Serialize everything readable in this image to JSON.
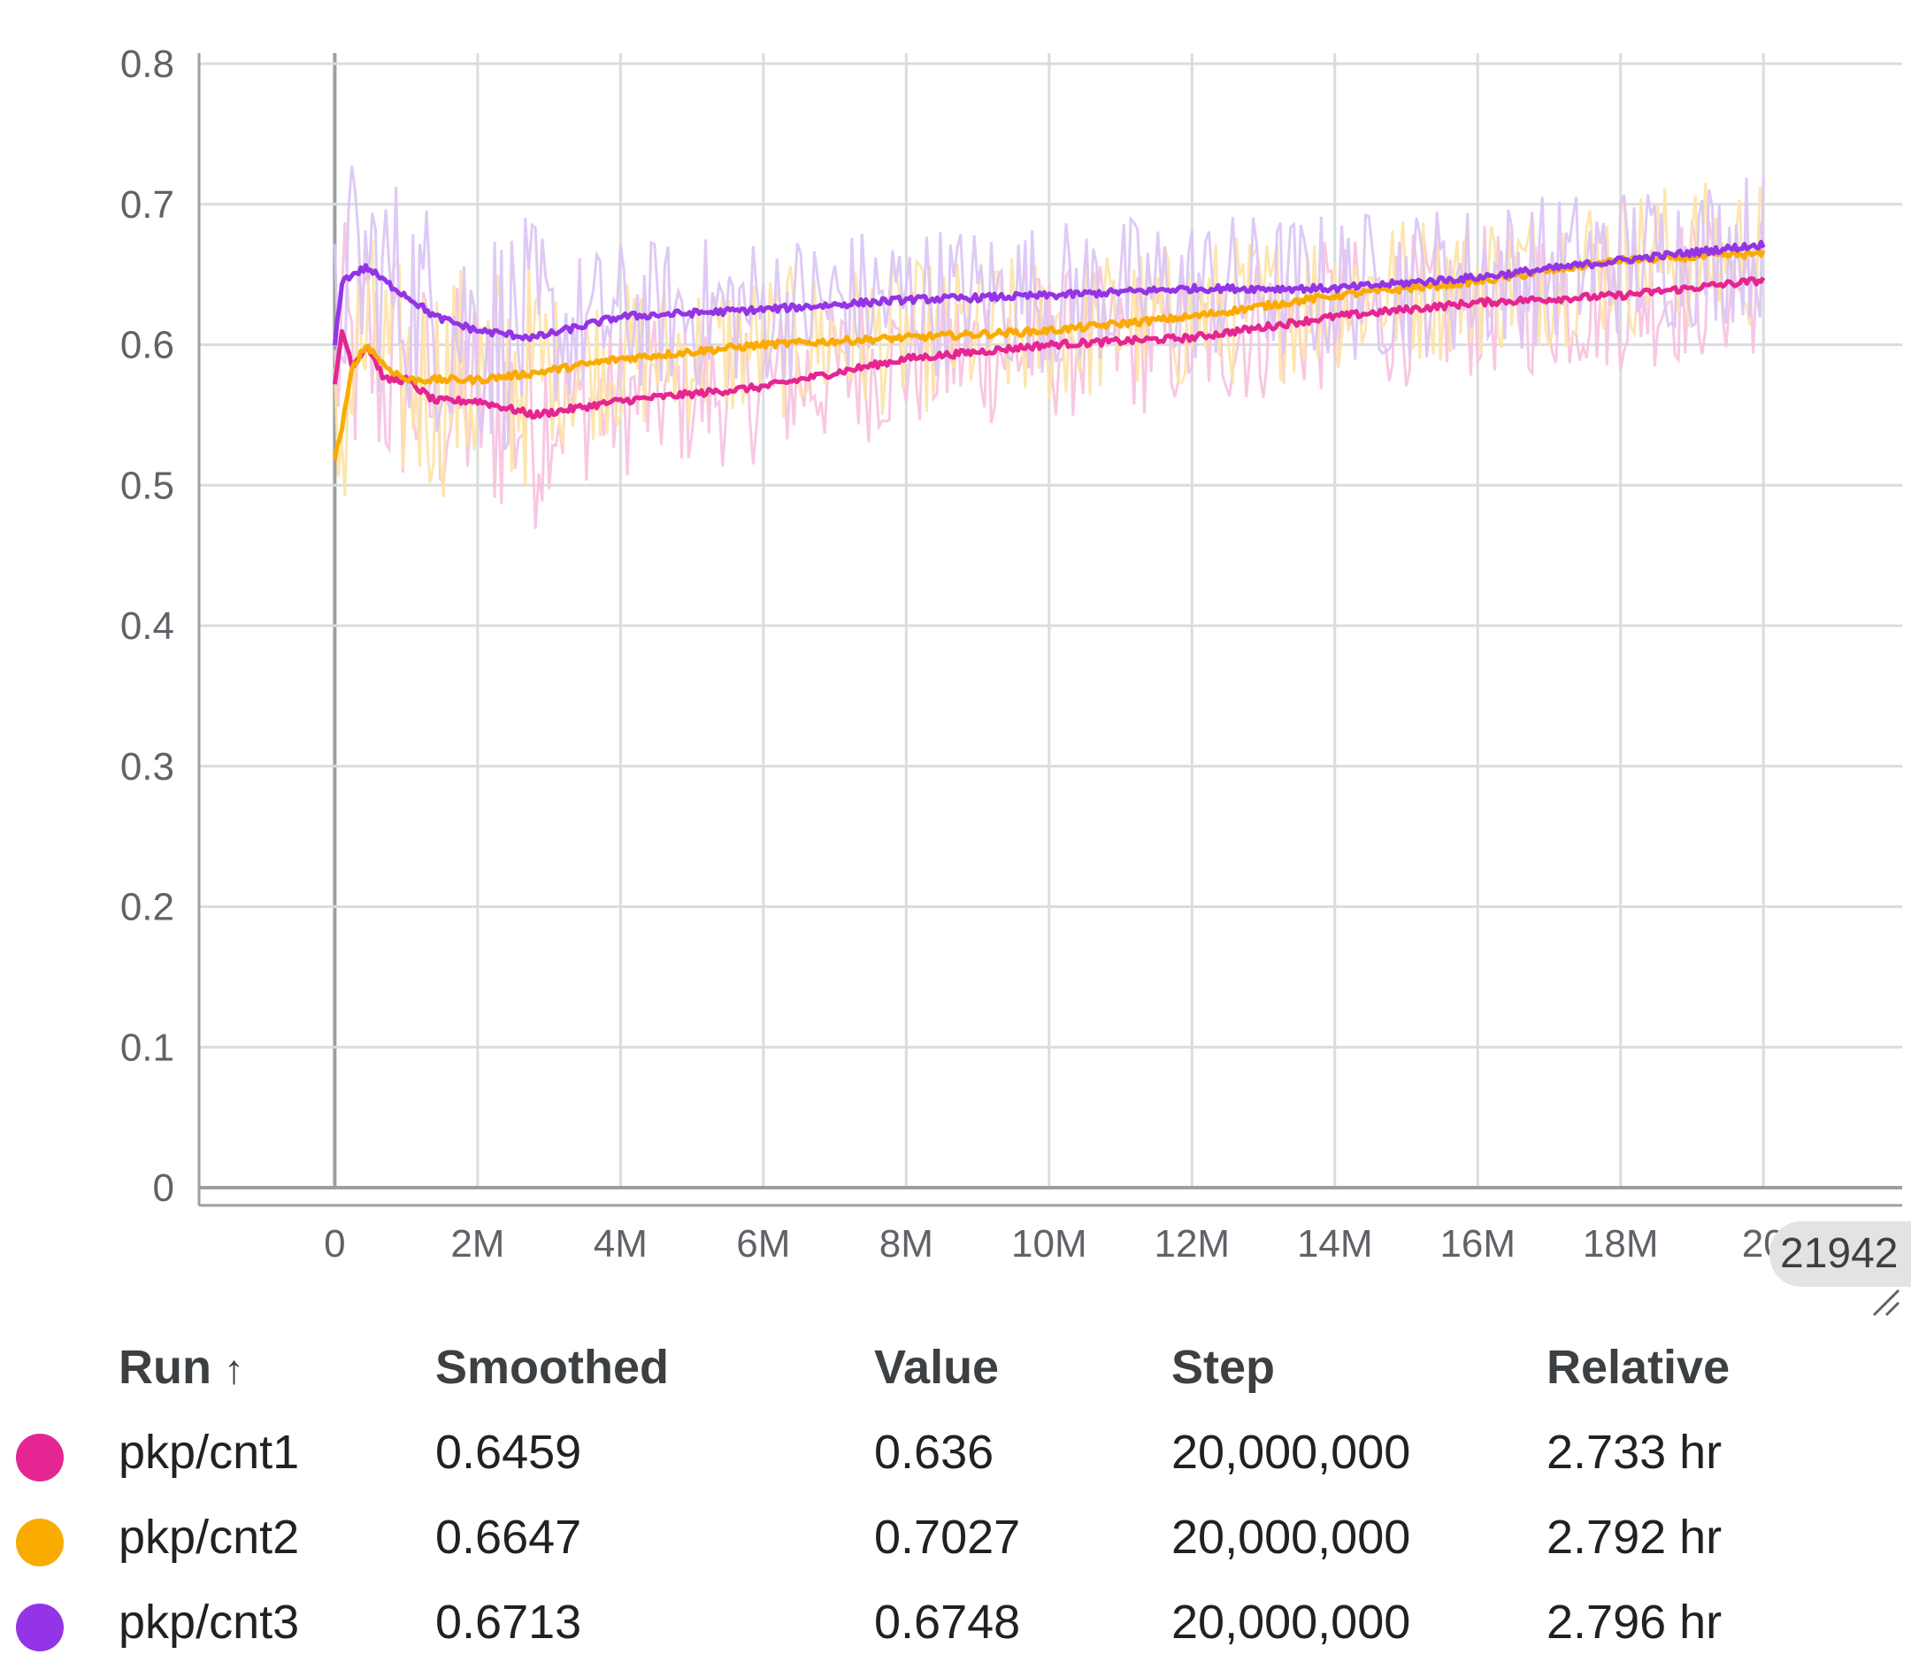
{
  "chart_data": {
    "type": "line",
    "xlim": [
      -1900000,
      21942000
    ],
    "ylim": [
      0,
      0.8
    ],
    "x_ticks": [
      "0",
      "2M",
      "4M",
      "6M",
      "8M",
      "10M",
      "12M",
      "14M",
      "16M",
      "18M",
      "20"
    ],
    "y_ticks": [
      "0",
      "0.1",
      "0.2",
      "0.3",
      "0.4",
      "0.5",
      "0.6",
      "0.7",
      "0.8"
    ],
    "grid": true,
    "hover_step_label": "21942",
    "series": [
      {
        "name": "pkp/cnt1",
        "color": "#e52592",
        "raw_color": "#f7c2e0",
        "smoothed": [
          [
            0,
            0.57
          ],
          [
            100000,
            0.61
          ],
          [
            250000,
            0.585
          ],
          [
            450000,
            0.6
          ],
          [
            700000,
            0.575
          ],
          [
            1000000,
            0.575
          ],
          [
            1400000,
            0.56
          ],
          [
            2000000,
            0.56
          ],
          [
            2800000,
            0.55
          ],
          [
            4000000,
            0.56
          ],
          [
            6000000,
            0.57
          ],
          [
            8000000,
            0.59
          ],
          [
            10000000,
            0.6
          ],
          [
            12000000,
            0.605
          ],
          [
            14000000,
            0.62
          ],
          [
            16000000,
            0.63
          ],
          [
            18000000,
            0.635
          ],
          [
            20000000,
            0.6459
          ]
        ]
      },
      {
        "name": "pkp/cnt2",
        "color": "#f9ab00",
        "raw_color": "#fde3a6",
        "smoothed": [
          [
            0,
            0.52
          ],
          [
            100000,
            0.54
          ],
          [
            250000,
            0.585
          ],
          [
            450000,
            0.6
          ],
          [
            700000,
            0.585
          ],
          [
            1000000,
            0.575
          ],
          [
            1400000,
            0.575
          ],
          [
            2000000,
            0.575
          ],
          [
            2800000,
            0.58
          ],
          [
            4000000,
            0.59
          ],
          [
            6000000,
            0.6
          ],
          [
            8000000,
            0.605
          ],
          [
            10000000,
            0.61
          ],
          [
            12000000,
            0.62
          ],
          [
            14000000,
            0.635
          ],
          [
            16000000,
            0.645
          ],
          [
            18000000,
            0.66
          ],
          [
            20000000,
            0.6647
          ]
        ]
      },
      {
        "name": "pkp/cnt3",
        "color": "#9334e6",
        "raw_color": "#dcc4f5",
        "smoothed": [
          [
            0,
            0.6
          ],
          [
            100000,
            0.645
          ],
          [
            250000,
            0.65
          ],
          [
            450000,
            0.655
          ],
          [
            700000,
            0.645
          ],
          [
            1000000,
            0.635
          ],
          [
            1400000,
            0.62
          ],
          [
            2000000,
            0.61
          ],
          [
            2800000,
            0.605
          ],
          [
            4000000,
            0.62
          ],
          [
            6000000,
            0.625
          ],
          [
            8000000,
            0.632
          ],
          [
            10000000,
            0.635
          ],
          [
            12000000,
            0.64
          ],
          [
            14000000,
            0.64
          ],
          [
            16000000,
            0.648
          ],
          [
            18000000,
            0.66
          ],
          [
            20000000,
            0.6713
          ]
        ]
      }
    ]
  },
  "table": {
    "headers": {
      "run": "Run",
      "sort_icon": "↑",
      "smoothed": "Smoothed",
      "value": "Value",
      "step": "Step",
      "relative": "Relative"
    },
    "rows": [
      {
        "run": "pkp/cnt1",
        "smoothed": "0.6459",
        "value": "0.636",
        "step": "20,000,000",
        "relative": "2.733 hr",
        "color": "#e52592"
      },
      {
        "run": "pkp/cnt2",
        "smoothed": "0.6647",
        "value": "0.7027",
        "step": "20,000,000",
        "relative": "2.792 hr",
        "color": "#f9ab00"
      },
      {
        "run": "pkp/cnt3",
        "smoothed": "0.6713",
        "value": "0.6748",
        "step": "20,000,000",
        "relative": "2.796 hr",
        "color": "#9334e6"
      }
    ]
  }
}
